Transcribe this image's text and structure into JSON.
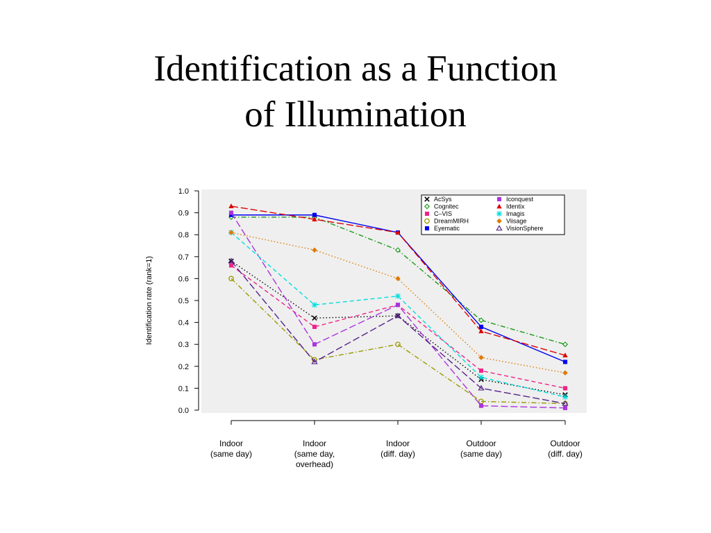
{
  "slide": {
    "title_line1": "Identification as a Function",
    "title_line2": "of Illumination"
  },
  "chart_data": {
    "type": "line",
    "title": "",
    "xlabel": "",
    "ylabel": "Identification rate (rank=1)",
    "ylim": [
      0.0,
      1.0
    ],
    "yticks": [
      "0.0",
      "0.1",
      "0.2",
      "0.3",
      "0.4",
      "0.5",
      "0.6",
      "0.7",
      "0.8",
      "0.9",
      "1.0"
    ],
    "categories": [
      [
        "Indoor",
        "(same day)"
      ],
      [
        "Indoor",
        "(same day,",
        "overhead)"
      ],
      [
        "Indoor",
        "(diff. day)"
      ],
      [
        "Outdoor",
        "(same day)"
      ],
      [
        "Outdoor",
        "(diff. day)"
      ]
    ],
    "plot_background": "#efefef",
    "grid": false,
    "legend_position": "top-right",
    "series": [
      {
        "name": "AcSys",
        "color": "#000000",
        "marker": "x",
        "dash": "dotted",
        "values": [
          0.68,
          0.42,
          0.43,
          0.14,
          0.07
        ]
      },
      {
        "name": "Cognitec",
        "color": "#1a9a1a",
        "marker": "diamond-open",
        "dash": "dashdot",
        "values": [
          0.88,
          0.88,
          0.73,
          0.41,
          0.3
        ]
      },
      {
        "name": "C–VIS",
        "color": "#ee2288",
        "marker": "square",
        "dash": "dashed",
        "values": [
          0.66,
          0.38,
          0.48,
          0.18,
          0.1
        ]
      },
      {
        "name": "DreamMIRH",
        "color": "#999900",
        "marker": "circle-open",
        "dash": "dashdot",
        "values": [
          0.6,
          0.23,
          0.3,
          0.04,
          0.03
        ]
      },
      {
        "name": "Eyematic",
        "color": "#0000ee",
        "marker": "square",
        "dash": "solid",
        "values": [
          0.89,
          0.89,
          0.81,
          0.38,
          0.22
        ]
      },
      {
        "name": "Iconquest",
        "color": "#aa33dd",
        "marker": "square",
        "dash": "longdash",
        "values": [
          0.9,
          0.3,
          0.48,
          0.02,
          0.01
        ]
      },
      {
        "name": "Identix",
        "color": "#dd0000",
        "marker": "triangle",
        "dash": "longdash",
        "values": [
          0.93,
          0.87,
          0.81,
          0.36,
          0.25
        ]
      },
      {
        "name": "Imagis",
        "color": "#00dddd",
        "marker": "star",
        "dash": "dashed",
        "values": [
          0.81,
          0.48,
          0.52,
          0.15,
          0.06
        ]
      },
      {
        "name": "Viisage",
        "color": "#e07a00",
        "marker": "diamond",
        "dash": "dotted",
        "values": [
          0.81,
          0.73,
          0.6,
          0.24,
          0.17
        ]
      },
      {
        "name": "VisionSphere",
        "color": "#552288",
        "marker": "triangle-open",
        "dash": "longdash",
        "values": [
          0.68,
          0.22,
          0.43,
          0.1,
          0.03
        ]
      }
    ]
  }
}
